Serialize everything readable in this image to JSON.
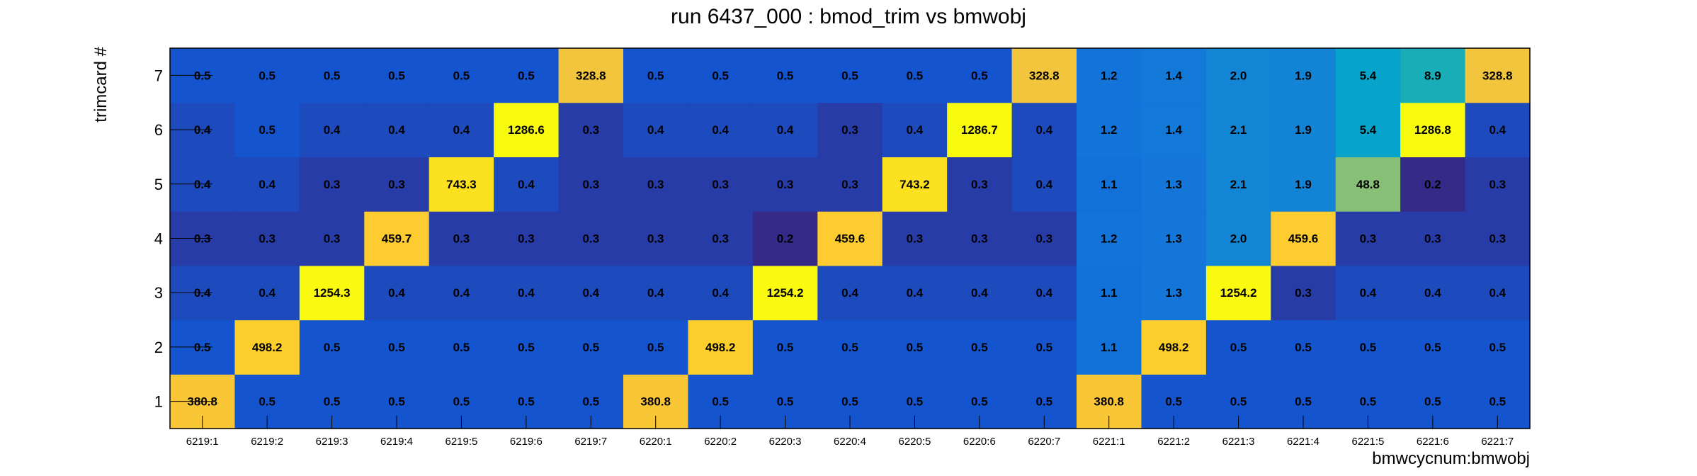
{
  "chart_data": {
    "type": "heatmap",
    "title": "run 6437_000 : bmod_trim vs bmwobj",
    "xlabel": "bmwcycnum:bmwobj",
    "ylabel": "trimcard #",
    "x_categories": [
      "6219:1",
      "6219:2",
      "6219:3",
      "6219:4",
      "6219:5",
      "6219:6",
      "6219:7",
      "6220:1",
      "6220:2",
      "6220:3",
      "6220:4",
      "6220:5",
      "6220:6",
      "6220:7",
      "6221:1",
      "6221:2",
      "6221:3",
      "6221:4",
      "6221:5",
      "6221:6",
      "6221:7"
    ],
    "y_categories": [
      "1",
      "2",
      "3",
      "4",
      "5",
      "6",
      "7"
    ],
    "values": [
      [
        380.8,
        0.5,
        0.5,
        0.5,
        0.5,
        0.5,
        0.5,
        380.8,
        0.5,
        0.5,
        0.5,
        0.5,
        0.5,
        0.5,
        380.8,
        0.5,
        0.5,
        0.5,
        0.5,
        0.5,
        0.5
      ],
      [
        0.5,
        498.2,
        0.5,
        0.5,
        0.5,
        0.5,
        0.5,
        0.5,
        498.2,
        0.5,
        0.5,
        0.5,
        0.5,
        0.5,
        1.1,
        498.2,
        0.5,
        0.5,
        0.5,
        0.5,
        0.5
      ],
      [
        0.4,
        0.4,
        1254.3,
        0.4,
        0.4,
        0.4,
        0.4,
        0.4,
        0.4,
        1254.2,
        0.4,
        0.4,
        0.4,
        0.4,
        1.1,
        1.3,
        1254.2,
        0.3,
        0.4,
        0.4,
        0.4
      ],
      [
        0.3,
        0.3,
        0.3,
        459.7,
        0.3,
        0.3,
        0.3,
        0.3,
        0.3,
        0.2,
        459.6,
        0.3,
        0.3,
        0.3,
        1.2,
        1.3,
        2.0,
        459.6,
        0.3,
        0.3,
        0.3
      ],
      [
        0.4,
        0.4,
        0.3,
        0.3,
        743.3,
        0.4,
        0.3,
        0.3,
        0.3,
        0.3,
        0.3,
        743.2,
        0.3,
        0.4,
        1.1,
        1.3,
        2.1,
        1.9,
        48.8,
        0.2,
        0.3
      ],
      [
        0.4,
        0.5,
        0.4,
        0.4,
        0.4,
        1286.6,
        0.3,
        0.4,
        0.4,
        0.4,
        0.3,
        0.4,
        1286.7,
        0.4,
        1.2,
        1.4,
        2.1,
        1.9,
        5.4,
        1286.8,
        0.4
      ],
      [
        0.5,
        0.5,
        0.5,
        0.5,
        0.5,
        0.5,
        328.8,
        0.5,
        0.5,
        0.5,
        0.5,
        0.5,
        0.5,
        328.8,
        1.2,
        1.4,
        2.0,
        1.9,
        5.4,
        8.9,
        328.8
      ]
    ],
    "value_format": "one-decimal",
    "color_scale": "log",
    "palette": [
      "#352a87",
      "#0f5cdd",
      "#1481d6",
      "#06a4ca",
      "#2eb7a4",
      "#87bf77",
      "#d1bb59",
      "#fec832",
      "#f9fb0e"
    ],
    "grid": false,
    "legend": "none"
  }
}
